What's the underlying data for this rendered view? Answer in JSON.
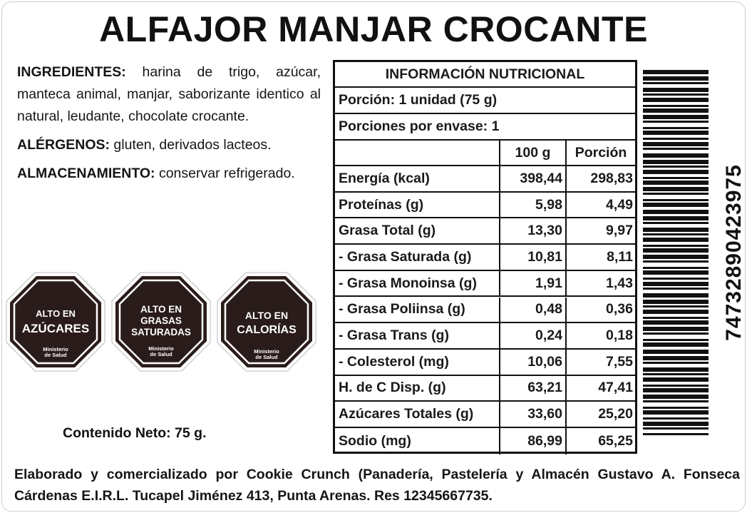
{
  "title": "ALFAJOR MANJAR CROCANTE",
  "ingredients": {
    "label": "INGREDIENTES:",
    "text": " harina de trigo, azúcar, manteca animal, manjar, saborizante identico al natural, leudante, chocolate crocante."
  },
  "allergens": {
    "label": "ALÉRGENOS:",
    "text": " gluten, derivados lacteos."
  },
  "storage": {
    "label": "ALMACENAMIENTO:",
    "text": " conservar refrigerado."
  },
  "seals": [
    {
      "line1": "ALTO EN",
      "line2": "AZÚCARES",
      "line3": "",
      "ministry1": "Ministerio",
      "ministry2": "de Salud"
    },
    {
      "line1": "ALTO EN",
      "line2": "GRASAS",
      "line3": "SATURADAS",
      "ministry1": "Ministerio",
      "ministry2": "de Salud"
    },
    {
      "line1": "ALTO EN",
      "line2": "CALORÍAS",
      "line3": "",
      "ministry1": "Ministerio",
      "ministry2": "de Salud"
    }
  ],
  "net_content": "Contenido Neto: 75 g.",
  "nutrition": {
    "title": "INFORMACIÓN NUTRICIONAL",
    "portion": "Porción: 1 unidad (75 g)",
    "portions_per_pack": "Porciones por envase: 1",
    "col_100g": "100 g",
    "col_portion": "Porción",
    "rows": [
      {
        "name": "Energía (kcal)",
        "v100": "398,44",
        "vport": "298,83"
      },
      {
        "name": "Proteínas (g)",
        "v100": "5,98",
        "vport": "4,49"
      },
      {
        "name": "Grasa Total (g)",
        "v100": "13,30",
        "vport": "9,97"
      },
      {
        "name": "- Grasa Saturada (g)",
        "v100": "10,81",
        "vport": "8,11"
      },
      {
        "name": "- Grasa Monoinsa (g)",
        "v100": "1,91",
        "vport": "1,43"
      },
      {
        "name": "- Grasa Poliinsa (g)",
        "v100": "0,48",
        "vport": "0,36"
      },
      {
        "name": "- Grasa Trans (g)",
        "v100": "0,24",
        "vport": "0,18"
      },
      {
        "name": "- Colesterol (mg)",
        "v100": "10,06",
        "vport": "7,55"
      },
      {
        "name": "H. de C Disp. (g)",
        "v100": "63,21",
        "vport": "47,41"
      },
      {
        "name": "Azúcares Totales (g)",
        "v100": "33,60",
        "vport": "25,20"
      },
      {
        "name": "Sodio (mg)",
        "v100": "86,99",
        "vport": "65,25"
      }
    ]
  },
  "barcode_number": "7473289042397​5",
  "footer": "Elaborado y comercializado por Cookie Crunch (Panadería, Pastelería y Almacén Gustavo A. Fonseca Cárdenas E.I.R.L. Tucapel Jiménez 413, Punta Arenas. Res 12345667735.",
  "colors": {
    "seal_fill": "#2a1c1a",
    "seal_ring": "#ffffff",
    "text": "#111111"
  }
}
